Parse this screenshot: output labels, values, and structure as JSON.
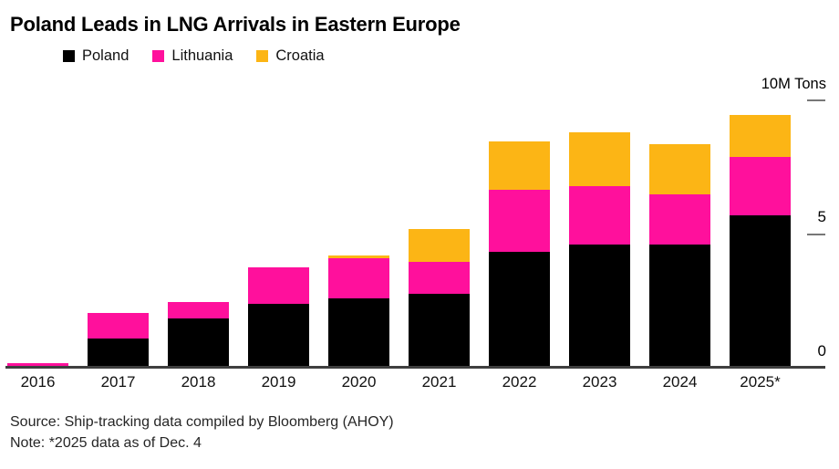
{
  "title": "Poland Leads in LNG Arrivals in Eastern Europe",
  "legend": {
    "items": [
      {
        "label": "Poland",
        "color": "#000000"
      },
      {
        "label": "Lithuania",
        "color": "#ff109c"
      },
      {
        "label": "Croatia",
        "color": "#fcb515"
      }
    ]
  },
  "chart_data": {
    "type": "bar",
    "stacked": true,
    "title": "Poland Leads in LNG Arrivals in Eastern Europe",
    "categories": [
      "2016",
      "2017",
      "2018",
      "2019",
      "2020",
      "2021",
      "2022",
      "2023",
      "2024",
      "2025*"
    ],
    "series": [
      {
        "name": "Poland",
        "color": "#000000",
        "values": [
          0.08,
          1.1,
          1.85,
          2.4,
          2.6,
          2.75,
          4.35,
          4.6,
          4.6,
          5.7
        ]
      },
      {
        "name": "Lithuania",
        "color": "#ff109c",
        "values": [
          0.1,
          0.95,
          0.6,
          1.35,
          1.5,
          1.2,
          2.3,
          2.2,
          1.9,
          2.2
        ]
      },
      {
        "name": "Croatia",
        "color": "#fcb515",
        "values": [
          0.0,
          0.0,
          0.0,
          0.0,
          0.1,
          1.25,
          1.8,
          2.0,
          1.85,
          1.55
        ]
      }
    ],
    "ylabel": "10M Tons",
    "yticks": [
      0,
      5,
      10
    ],
    "ylim": [
      0,
      10
    ],
    "grid": false,
    "legend_position": "top-left"
  },
  "y_axis": {
    "unit_label": "10M Tons",
    "mid_label": "5",
    "base_label": "0"
  },
  "footer": {
    "source": "Source: Ship-tracking data compiled by Bloomberg (AHOY)",
    "note": "Note: *2025 data as of Dec. 4"
  }
}
